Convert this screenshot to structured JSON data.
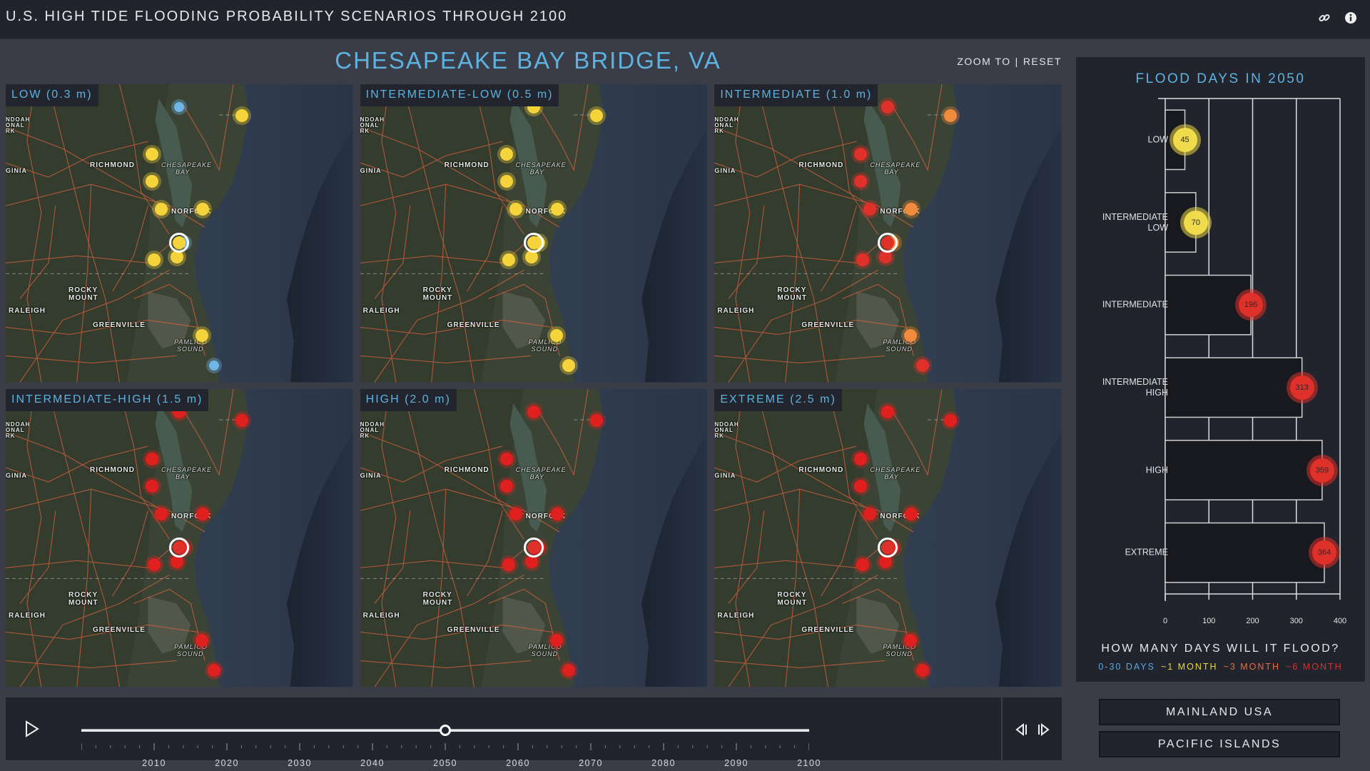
{
  "header": {
    "title": "U.S. HIGH TIDE FLOODING PROBABILITY SCENARIOS THROUGH 2100",
    "icons": [
      "link-icon",
      "info-icon"
    ]
  },
  "location": {
    "title": "CHESAPEAKE BAY BRIDGE, VA",
    "zoom_to": "ZOOM TO",
    "separator": "|",
    "reset": "RESET"
  },
  "map_places": {
    "richmond": "RICHMOND",
    "bay1": "CHESAPEAKE",
    "bay2": "BAY",
    "norfolk": "NORFOLK",
    "rocky1": "ROCKY",
    "rocky2": "MOUNT",
    "raleigh": "RALEIGH",
    "greenville": "GREENVILLE",
    "pamlico1": "PAMLICO",
    "pamlico2": "SOUND",
    "shenandoah1": "NDOAH",
    "shenandoah2": "ONAL",
    "shenandoah3": "RK",
    "virginia": "GINIA"
  },
  "maps": [
    {
      "label": "LOW (0.3 m)",
      "dots": [
        "#f5d33a",
        "#6fb6e8",
        "#f5d33a",
        "#f5d33a",
        "#f5d33a",
        "#f5d33a",
        "#6fb6e8",
        "#f5d33a",
        "#f5d33a",
        "#f5d33a",
        "#6fb6e8"
      ]
    },
    {
      "label": "INTERMEDIATE-LOW (0.5 m)",
      "dots": [
        "#f5d33a",
        "#f5d33a",
        "#f5d33a",
        "#f5d33a",
        "#f5d33a",
        "#f5d33a",
        "#f5d33a",
        "#f5d33a",
        "#f5d33a",
        "#f5d33a",
        "#f5d33a"
      ]
    },
    {
      "label": "INTERMEDIATE (1.0 m)",
      "dots": [
        "#f08a3c",
        "#e0302a",
        "#e0302a",
        "#e0302a",
        "#e0302a",
        "#f08a3c",
        "#f08a3c",
        "#e0302a",
        "#e0302a",
        "#f08a3c",
        "#e0302a"
      ]
    },
    {
      "label": "INTERMEDIATE-HIGH (1.5 m)",
      "dots": [
        "#e0201e",
        "#e0201e",
        "#e0201e",
        "#e0201e",
        "#e0201e",
        "#e0201e",
        "#e0201e",
        "#e0201e",
        "#e0201e",
        "#e0201e",
        "#e0201e"
      ]
    },
    {
      "label": "HIGH (2.0 m)",
      "dots": [
        "#e0201e",
        "#e0201e",
        "#e0201e",
        "#e0201e",
        "#e0201e",
        "#e0201e",
        "#e0201e",
        "#e0201e",
        "#e0201e",
        "#e0201e",
        "#e0201e"
      ]
    },
    {
      "label": "EXTREME (2.5 m)",
      "dots": [
        "#e0201e",
        "#e0201e",
        "#e0201e",
        "#e0201e",
        "#e0201e",
        "#e0201e",
        "#e0201e",
        "#e0201e",
        "#e0201e",
        "#e0201e",
        "#e0201e"
      ]
    }
  ],
  "chart_data": {
    "type": "bar",
    "orientation": "horizontal",
    "title": "FLOOD DAYS IN 2050",
    "categories": [
      "LOW",
      "INTERMEDIATE LOW",
      "INTERMEDIATE",
      "INTERMEDIATE HIGH",
      "HIGH",
      "EXTREME"
    ],
    "category_lines": [
      [
        "LOW"
      ],
      [
        "INTERMEDIATE",
        "LOW"
      ],
      [
        "INTERMEDIATE"
      ],
      [
        "INTERMEDIATE",
        "HIGH"
      ],
      [
        "HIGH"
      ],
      [
        "EXTREME"
      ]
    ],
    "values": [
      45,
      70,
      196,
      313,
      359,
      364
    ],
    "labels": [
      "45",
      "70",
      "196",
      "313",
      "359",
      "364"
    ],
    "marker_colors": [
      "#f0dc4a",
      "#f0dc4a",
      "#e0302a",
      "#e0302a",
      "#e0302a",
      "#e0302a"
    ],
    "xlabel": "",
    "ylabel": "",
    "xlim": [
      0,
      400
    ],
    "xticks": [
      "0",
      "100",
      "200",
      "300",
      "400"
    ],
    "grid": true
  },
  "legend": {
    "question": "HOW MANY DAYS WILL IT FLOOD?",
    "items": [
      {
        "label": "0-30 DAYS",
        "color": "#5aa8dc"
      },
      {
        "label": "~1 MONTH",
        "color": "#e8d83a"
      },
      {
        "label": "~3 MONTH",
        "color": "#ec6a3a"
      },
      {
        "label": "~6 MONTH",
        "color": "#d8302c"
      }
    ]
  },
  "timeline": {
    "current_year": 2050,
    "min_year": 2000,
    "max_year": 2100,
    "year_labels": [
      "2010",
      "2020",
      "2030",
      "2040",
      "2050",
      "2060",
      "2070",
      "2080",
      "2090",
      "2100"
    ]
  },
  "region_buttons": {
    "mainland": "MAINLAND USA",
    "pacific": "PACIFIC ISLANDS"
  }
}
